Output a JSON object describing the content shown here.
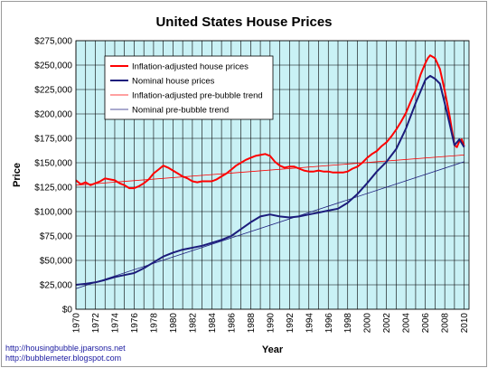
{
  "chart_data": {
    "type": "line",
    "title": "United States House Prices",
    "xlabel": "Year",
    "ylabel": "Price",
    "xlim": [
      1970,
      2010.5
    ],
    "ylim": [
      0,
      275000
    ],
    "x_ticks": [
      "1970",
      "1972",
      "1974",
      "1976",
      "1978",
      "1980",
      "1982",
      "1984",
      "1986",
      "1988",
      "1990",
      "1992",
      "1994",
      "1996",
      "1998",
      "2000",
      "2002",
      "2004",
      "2006",
      "2008",
      "2010"
    ],
    "y_ticks": [
      "$0",
      "$25,000",
      "$50,000",
      "$75,000",
      "$100,000",
      "$125,000",
      "$150,000",
      "$175,000",
      "$200,000",
      "$225,000",
      "$250,000",
      "$275,000"
    ],
    "grid": true,
    "legend_position": "top-left",
    "background_color": "#c9f1f5",
    "series": [
      {
        "name": "Inflation-adjusted house prices",
        "color": "#ff0000",
        "width": 2,
        "x": [
          1970,
          1970.5,
          1971,
          1971.5,
          1972,
          1972.5,
          1973,
          1973.5,
          1974,
          1974.5,
          1975,
          1975.5,
          1976,
          1976.5,
          1977,
          1977.5,
          1978,
          1978.5,
          1979,
          1979.5,
          1980,
          1980.5,
          1981,
          1981.5,
          1982,
          1982.5,
          1983,
          1983.5,
          1984,
          1984.5,
          1985,
          1985.5,
          1986,
          1986.5,
          1987,
          1987.5,
          1988,
          1988.5,
          1989,
          1989.5,
          1990,
          1990.5,
          1991,
          1991.5,
          1992,
          1992.5,
          1993,
          1993.5,
          1994,
          1994.5,
          1995,
          1995.5,
          1996,
          1996.5,
          1997,
          1997.5,
          1998,
          1998.5,
          1999,
          1999.5,
          2000,
          2000.5,
          2001,
          2001.5,
          2002,
          2002.5,
          2003,
          2003.5,
          2004,
          2004.5,
          2005,
          2005.5,
          2006,
          2006.25,
          2006.5,
          2007,
          2007.5,
          2008,
          2008.5,
          2009,
          2009.25,
          2009.5,
          2009.75,
          2010
        ],
        "y": [
          132000,
          128000,
          130000,
          127000,
          129000,
          131000,
          134000,
          133000,
          132000,
          129000,
          127000,
          124000,
          124000,
          126000,
          129000,
          133000,
          139000,
          143000,
          147000,
          145000,
          142000,
          139000,
          136000,
          134000,
          131000,
          130000,
          131000,
          131000,
          131000,
          133000,
          136000,
          139000,
          143000,
          147000,
          150000,
          153000,
          155000,
          157000,
          158000,
          159000,
          157000,
          151000,
          147000,
          145000,
          146000,
          146000,
          144000,
          142000,
          141000,
          141000,
          142000,
          141000,
          141000,
          140000,
          140000,
          140000,
          141000,
          144000,
          146000,
          150000,
          155000,
          159000,
          162000,
          167000,
          171000,
          177000,
          184000,
          192000,
          201000,
          213000,
          224000,
          240000,
          252000,
          257000,
          260000,
          257000,
          246000,
          224000,
          198000,
          168000,
          166000,
          172000,
          174000,
          167000
        ],
        "linestyle": "solid"
      },
      {
        "name": "Nominal house prices",
        "color": "#1c1c7c",
        "width": 2,
        "x": [
          1970,
          1971,
          1972,
          1973,
          1974,
          1975,
          1976,
          1977,
          1978,
          1979,
          1980,
          1981,
          1982,
          1983,
          1984,
          1985,
          1986,
          1987,
          1988,
          1989,
          1990,
          1991,
          1992,
          1993,
          1994,
          1995,
          1996,
          1997,
          1998,
          1999,
          2000,
          2001,
          2002,
          2003,
          2004,
          2005,
          2006,
          2006.5,
          2007,
          2007.5,
          2008,
          2008.5,
          2009,
          2009.5,
          2010
        ],
        "y": [
          25000,
          26000,
          27500,
          30000,
          33000,
          35000,
          37000,
          42000,
          48000,
          54000,
          58000,
          61000,
          63000,
          65000,
          68000,
          71000,
          75000,
          82000,
          89000,
          95000,
          97000,
          95000,
          94000,
          95000,
          97000,
          99000,
          101000,
          103000,
          109000,
          118000,
          129000,
          141000,
          151000,
          164000,
          185000,
          211000,
          235000,
          239000,
          236000,
          231000,
          211000,
          190000,
          168000,
          174000,
          166000
        ],
        "linestyle": "solid"
      },
      {
        "name": "Inflation-adjusted pre-bubble trend",
        "color": "#ff0000",
        "width": 0.8,
        "x": [
          1970,
          2010
        ],
        "y": [
          127000,
          158000
        ],
        "linestyle": "solid"
      },
      {
        "name": "Nominal pre-bubble trend",
        "color": "#1c1c7c",
        "width": 0.8,
        "x": [
          1970,
          2010
        ],
        "y": [
          21000,
          151000
        ],
        "linestyle": "solid"
      }
    ]
  },
  "credits": {
    "line1": "http://housingbubble.jparsons.net",
    "line2": "http://bubblemeter.blogspot.com"
  }
}
